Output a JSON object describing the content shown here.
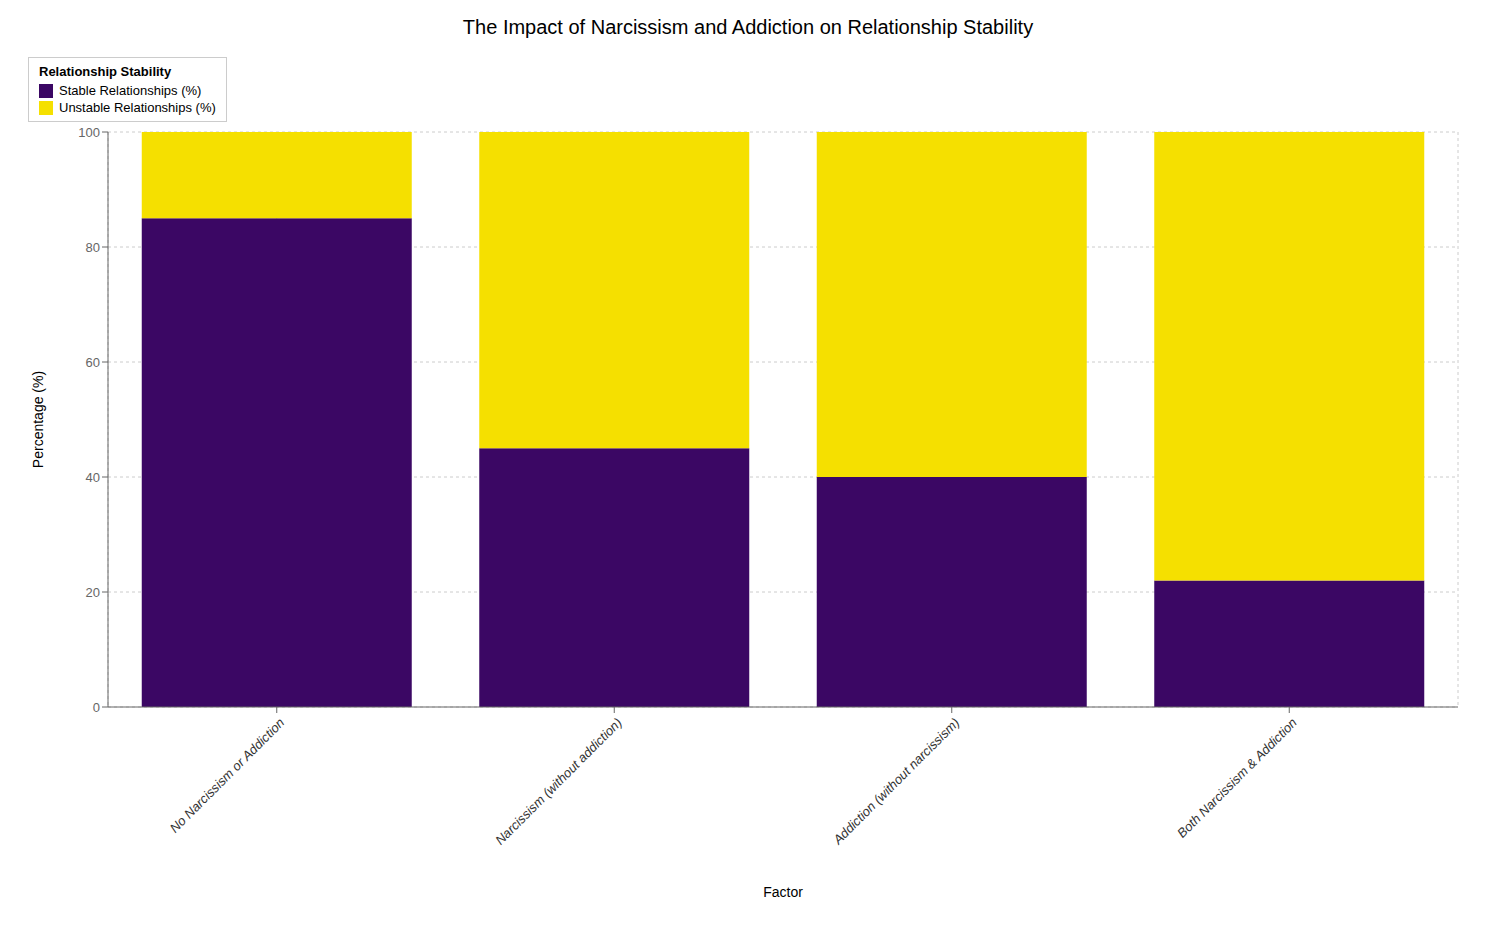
{
  "chart_data": {
    "type": "bar",
    "stacked": true,
    "title": "The Impact of Narcissism and Addiction on Relationship Stability",
    "xlabel": "Factor",
    "ylabel": "Percentage (%)",
    "categories": [
      "No Narcissism or Addiction",
      "Narcissism (without addiction)",
      "Addiction (without narcissism)",
      "Both Narcissism & Addiction"
    ],
    "series": [
      {
        "name": "Stable Relationships (%)",
        "color": "#3b0764",
        "values": [
          85,
          45,
          40,
          22
        ]
      },
      {
        "name": "Unstable Relationships (%)",
        "color": "#f5e000",
        "values": [
          15,
          55,
          60,
          78
        ]
      }
    ],
    "ylim": [
      0,
      100
    ],
    "yticks": [
      0,
      20,
      40,
      60,
      80,
      100
    ],
    "grid": true,
    "legend": "upper right",
    "legend_title": "Relationship Stability"
  }
}
